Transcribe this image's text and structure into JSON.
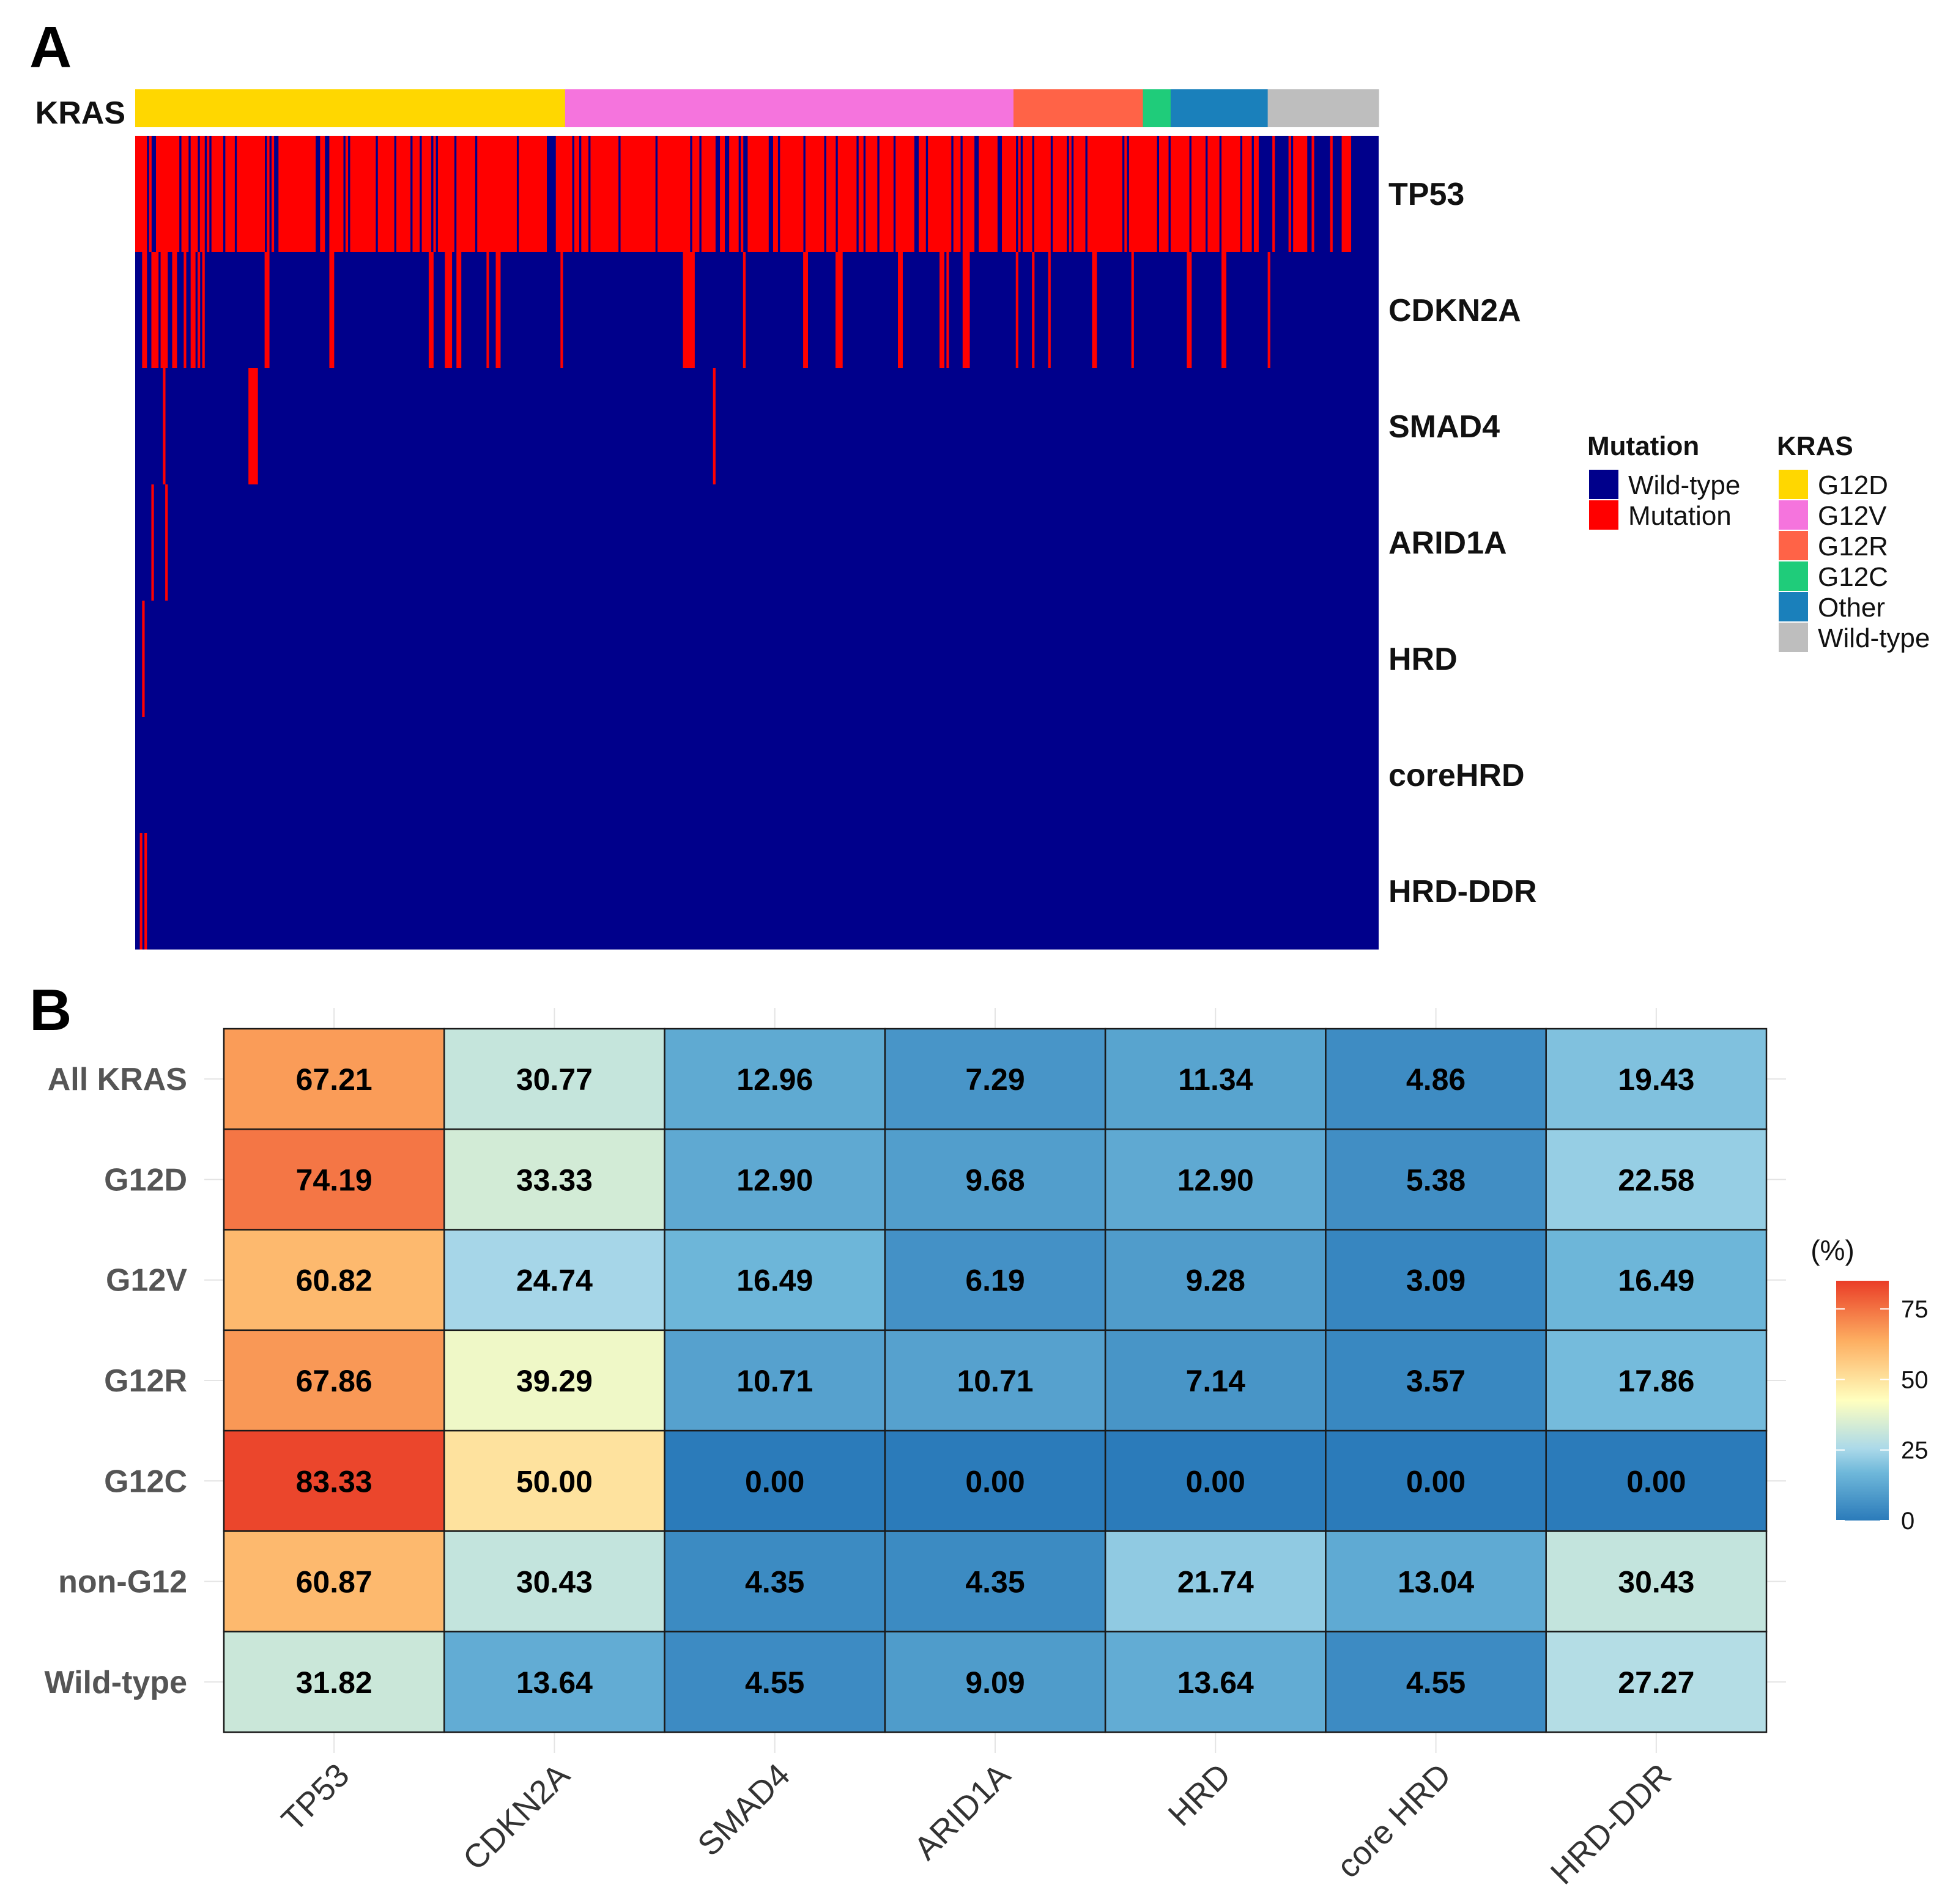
{
  "panels": {
    "a": {
      "letter": "A",
      "kras_track_label": "KRAS"
    },
    "b": {
      "letter": "B"
    }
  },
  "colors": {
    "wild_type": "#00008B",
    "mutation": "#FF0000",
    "kras": {
      "G12D": "#FFD700",
      "G12V": "#F574DD",
      "G12R": "#FF6347",
      "G12C": "#1FCC7A",
      "Other": "#1A80BB",
      "Wild-type": "#BEBEBE"
    }
  },
  "legend": {
    "mutation_title": "Mutation",
    "mutation_items": [
      {
        "label": "Wild-type",
        "color": "#00008B"
      },
      {
        "label": "Mutation",
        "color": "#FF0000"
      }
    ],
    "kras_title": "KRAS",
    "kras_items": [
      {
        "label": "G12D",
        "color": "#FFD700"
      },
      {
        "label": "G12V",
        "color": "#F574DD"
      },
      {
        "label": "G12R",
        "color": "#FF6347"
      },
      {
        "label": "G12C",
        "color": "#1FCC7A"
      },
      {
        "label": "Other",
        "color": "#1A80BB"
      },
      {
        "label": "Wild-type",
        "color": "#BEBEBE"
      }
    ]
  },
  "chart_data": [
    {
      "type": "heatmap",
      "description": "Per-sample binary oncoprint: mutation (1) vs wild-type (0), samples ordered by KRAS group",
      "kras_groups": [
        {
          "name": "G12D",
          "n": 186
        },
        {
          "name": "G12V",
          "n": 194
        },
        {
          "name": "G12R",
          "n": 56
        },
        {
          "name": "G12C",
          "n": 12
        },
        {
          "name": "Other",
          "n": 42
        },
        {
          "name": "Wild-type",
          "n": 48
        }
      ],
      "genes": [
        "TP53",
        "CDKN2A",
        "SMAD4",
        "ARID1A",
        "HRD",
        "coreHRD",
        "HRD-DDR"
      ],
      "mutation_pattern": [
        "1111010011111111110111011101101011110111101111111111110101001111111111111110011001111110101111111111101111110111111011101111010111111101111111011111111111111111011111111111100011111110110111011111111111101111111111111101111111111111101110111111011001111010011111111100110111111111011111111011110111111110110111110111110111111110011101111111111011101111001111111100111111010111101111110111111010111110111111111111111010111111111110111101111111101111110111101111111101111011000000100000010111110010000000100001111000000000000",
        "0011001110111001100100110101000000000000000000000000011000000000000000000000000110000000000000000000000000000000000000001100000111001000000000001000110000000000000000000000001000000000000000000000000000000000000000000000000001111000000000000000000001000000000000000000000000110000000000011100000000000000000000000110000000000000001101000000110000000000000000000100000010000001000000000000000001100000000000000100000000000000000000001100000000000011000000000000000001000000000000000000000000000000000000000000000",
        "0000000000010000000000000000000000000000000000011100000000000000000000000000000000000000000000000000000000000000000000000000000000000000000000000000000000000000000000000000000000000000000000000000000000000000000000000000000000000000000000001000000000000000000000000000000000000000000000000000000000000000000000000000000000000000000000000000000000000000000000000000000000000000000000000000000000000000000000000000000000000000000000000000000000000000000000000000000000000000000000000000000000000000000000000000000000000",
        "0000001000001000000000000000000000000000000000000000000000000000000000000000000000000000000000000000000000000000000000000000000000000000000000000000000000000000000000000000000000000000000000000000000000000000000000000000000000000000000000000000000000000000000000000000000000000000000000000000000000000000000000000000000000000000000000000000000000000000000000000000000000000000000000000000000000000000000000000000000000000000000000000000000000000000000000000000000000000000000000000000000000000000000000000000000000000",
        "0010000000000000000000000000000000000000000000000000000000000000000000000000000000000000000000000000000000000000000000000000000000000000000000000000000000000000000000000000000000000000000000000000000000000000000000000000000000000000000000000000000000000000000000000000000000000000000000000000000000000000000000000000000000000000000000000000000000000000000000000000000000000000000000000000000000000000000000000000000000000000000000000000000000000000000000000000000000000000000000000000000000000000000000000000000000000",
        "0000000000000000000000000000000000000000000000000000000000000000000000000000000000000000000000000000000000000000000000000000000000000000000000000000000000000000000000000000000000000000000000000000000000000000000000000000000000000000000000000000000000000000000000000000000000000000000000000000000000000000000000000000000000000000000000000000000000000000000000000000000000000000000000000000000000000000000000000000000000000000000000000000000000000000000000000000000000000000000000000000000000000000000000000000000000000",
        "0101000000000000000000000000000000000000000000000000000000000000000000000000000000000000000000000000000000000000000000000000000000000000000000000000000000000000000000000000000000000000000000000000000000000000000000000000000000000000000000000000000000000000000000000000000000000000000000000000000000000000000000000000000000000000000000000000000000000000000000000000000000000000000000000000000000000000000000000000000000000000000000000000000000000000000000000000000000000000000000000000000000000000000000000000000000000"
      ]
    },
    {
      "type": "heatmap",
      "description": "Mutation frequency (%) by KRAS status",
      "colorbar_title": "(%)",
      "colorbar_ticks": [
        "75",
        "50",
        "25",
        "0"
      ],
      "colorbar_range": [
        0,
        85
      ],
      "x_labels": [
        "TP53",
        "CDKN2A",
        "SMAD4",
        "ARID1A",
        "HRD",
        "core HRD",
        "HRD-DDR"
      ],
      "y_labels": [
        "All KRAS",
        "G12D",
        "G12V",
        "G12R",
        "G12C",
        "non-G12",
        "Wild-type"
      ],
      "values": [
        [
          67.21,
          30.77,
          12.96,
          7.29,
          11.34,
          4.86,
          19.43
        ],
        [
          74.19,
          33.33,
          12.9,
          9.68,
          12.9,
          5.38,
          22.58
        ],
        [
          60.82,
          24.74,
          16.49,
          6.19,
          9.28,
          3.09,
          16.49
        ],
        [
          67.86,
          39.29,
          10.71,
          10.71,
          7.14,
          3.57,
          17.86
        ],
        [
          83.33,
          50.0,
          0.0,
          0.0,
          0.0,
          0.0,
          0.0
        ],
        [
          60.87,
          30.43,
          4.35,
          4.35,
          21.74,
          13.04,
          30.43
        ],
        [
          31.82,
          13.64,
          4.55,
          9.09,
          13.64,
          4.55,
          27.27
        ]
      ],
      "value_labels": [
        [
          "67.21",
          "30.77",
          "12.96",
          "7.29",
          "11.34",
          "4.86",
          "19.43"
        ],
        [
          "74.19",
          "33.33",
          "12.90",
          "9.68",
          "12.90",
          "5.38",
          "22.58"
        ],
        [
          "60.82",
          "24.74",
          "16.49",
          "6.19",
          "9.28",
          "3.09",
          "16.49"
        ],
        [
          "67.86",
          "39.29",
          "10.71",
          "10.71",
          "7.14",
          "3.57",
          "17.86"
        ],
        [
          "83.33",
          "50.00",
          "0.00",
          "0.00",
          "0.00",
          "0.00",
          "0.00"
        ],
        [
          "60.87",
          "30.43",
          "4.35",
          "4.35",
          "21.74",
          "13.04",
          "30.43"
        ],
        [
          "31.82",
          "13.64",
          "4.55",
          "9.09",
          "13.64",
          "4.55",
          "27.27"
        ]
      ]
    }
  ]
}
